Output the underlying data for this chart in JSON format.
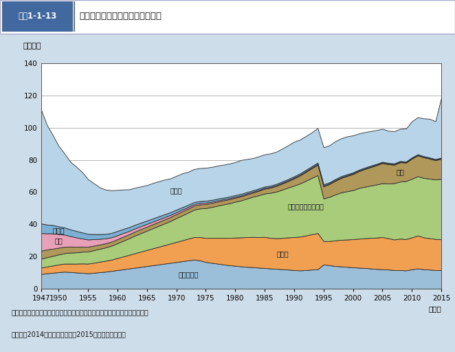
{
  "title_num": "図表1-1-13",
  "title_text": "主な死因別に見た死亡者数の推移",
  "ylabel": "（万人）",
  "xlabel": "（年）",
  "ylim": [
    0,
    140
  ],
  "years": [
    1947,
    1948,
    1949,
    1950,
    1951,
    1952,
    1953,
    1954,
    1955,
    1956,
    1957,
    1958,
    1959,
    1960,
    1961,
    1962,
    1963,
    1964,
    1965,
    1966,
    1967,
    1968,
    1969,
    1970,
    1971,
    1972,
    1973,
    1974,
    1975,
    1976,
    1977,
    1978,
    1979,
    1980,
    1981,
    1982,
    1983,
    1984,
    1985,
    1986,
    1987,
    1988,
    1989,
    1990,
    1991,
    1992,
    1993,
    1994,
    1995,
    1996,
    1997,
    1998,
    1999,
    2000,
    2001,
    2002,
    2003,
    2004,
    2005,
    2006,
    2007,
    2008,
    2009,
    2010,
    2011,
    2012,
    2013,
    2014,
    2015
  ],
  "series_order": [
    "脳血管疾患",
    "心疾患",
    "悪性新生物",
    "肺炎",
    "結核",
    "胃腸炎",
    "その他"
  ],
  "series": {
    "脳血管疾患": {
      "color": "#9cbfd9",
      "values": [
        9.0,
        9.5,
        9.8,
        10.2,
        10.5,
        10.3,
        10.0,
        9.8,
        9.5,
        9.8,
        10.2,
        10.5,
        11.0,
        11.5,
        12.0,
        12.5,
        13.0,
        13.5,
        14.0,
        14.5,
        15.0,
        15.5,
        16.0,
        16.5,
        17.0,
        17.5,
        18.0,
        17.5,
        16.5,
        16.0,
        15.5,
        15.0,
        14.5,
        14.2,
        13.8,
        13.5,
        13.3,
        13.0,
        12.8,
        12.5,
        12.3,
        12.0,
        11.8,
        11.5,
        11.3,
        11.5,
        11.8,
        12.0,
        15.0,
        14.5,
        14.0,
        13.8,
        13.5,
        13.2,
        13.0,
        12.8,
        12.5,
        12.2,
        12.0,
        11.8,
        11.5,
        11.5,
        11.3,
        12.0,
        12.5,
        12.0,
        11.8,
        11.5,
        11.4
      ]
    },
    "心疾患": {
      "color": "#f0a050",
      "values": [
        4.0,
        4.2,
        4.5,
        4.8,
        5.0,
        5.2,
        5.5,
        5.8,
        6.0,
        6.3,
        6.5,
        6.8,
        7.0,
        7.5,
        8.0,
        8.5,
        9.0,
        9.5,
        10.0,
        10.5,
        11.0,
        11.5,
        12.0,
        12.5,
        13.0,
        13.5,
        14.0,
        14.5,
        15.0,
        15.5,
        16.0,
        16.5,
        17.0,
        17.5,
        18.0,
        18.5,
        18.8,
        19.0,
        19.3,
        19.0,
        19.0,
        19.5,
        20.0,
        20.5,
        21.0,
        21.5,
        22.0,
        22.5,
        14.5,
        15.0,
        16.0,
        16.5,
        17.0,
        17.5,
        18.0,
        18.5,
        19.0,
        19.5,
        20.0,
        19.5,
        19.0,
        19.5,
        19.5,
        19.8,
        20.5,
        19.8,
        19.5,
        19.3,
        19.3
      ]
    },
    "悪性新生物": {
      "color": "#a8cc7a",
      "values": [
        5.5,
        5.8,
        6.0,
        6.2,
        6.5,
        6.8,
        7.0,
        7.3,
        7.5,
        7.8,
        8.0,
        8.3,
        8.7,
        9.2,
        9.8,
        10.3,
        11.0,
        11.5,
        12.0,
        12.5,
        13.0,
        13.5,
        14.0,
        14.8,
        15.5,
        16.2,
        17.0,
        17.8,
        18.5,
        19.2,
        20.0,
        20.8,
        21.5,
        22.3,
        23.0,
        24.0,
        25.0,
        26.0,
        27.0,
        28.0,
        29.0,
        30.0,
        31.0,
        32.0,
        33.0,
        34.0,
        35.0,
        36.0,
        26.5,
        27.5,
        28.5,
        29.5,
        30.0,
        30.5,
        31.5,
        32.0,
        32.5,
        33.0,
        33.5,
        34.0,
        35.0,
        35.5,
        36.0,
        36.5,
        36.8,
        37.0,
        37.0,
        37.0,
        37.5
      ]
    },
    "肺炎": {
      "color": "#b0975a",
      "values": [
        5.0,
        4.8,
        4.5,
        4.2,
        4.0,
        3.8,
        3.5,
        3.2,
        3.0,
        2.8,
        2.7,
        2.6,
        2.5,
        2.5,
        2.5,
        2.5,
        2.5,
        2.5,
        2.5,
        2.5,
        2.5,
        2.5,
        2.5,
        2.5,
        2.5,
        2.5,
        2.5,
        2.5,
        2.5,
        2.5,
        2.5,
        2.5,
        2.5,
        2.5,
        2.5,
        2.5,
        2.5,
        2.8,
        3.0,
        3.2,
        3.5,
        3.8,
        4.0,
        4.5,
        5.0,
        5.5,
        6.0,
        6.5,
        7.5,
        8.0,
        8.5,
        9.0,
        9.5,
        10.0,
        10.5,
        11.0,
        11.5,
        12.0,
        12.5,
        12.0,
        11.5,
        12.0,
        11.5,
        12.5,
        13.0,
        12.8,
        12.5,
        12.0,
        12.5
      ]
    },
    "結核": {
      "color": "#e8a0b8",
      "values": [
        11.0,
        10.0,
        9.5,
        8.5,
        7.5,
        6.5,
        5.8,
        5.0,
        4.5,
        4.0,
        3.5,
        3.0,
        2.7,
        2.5,
        2.3,
        2.0,
        1.9,
        1.8,
        1.7,
        1.6,
        1.5,
        1.4,
        1.3,
        1.2,
        1.1,
        1.0,
        1.0,
        0.9,
        0.9,
        0.8,
        0.8,
        0.7,
        0.7,
        0.6,
        0.6,
        0.6,
        0.6,
        0.5,
        0.5,
        0.5,
        0.5,
        0.5,
        0.5,
        0.5,
        0.5,
        0.5,
        0.5,
        0.5,
        0.5,
        0.4,
        0.4,
        0.4,
        0.4,
        0.4,
        0.3,
        0.3,
        0.3,
        0.3,
        0.3,
        0.3,
        0.3,
        0.3,
        0.2,
        0.2,
        0.2,
        0.2,
        0.2,
        0.2,
        0.2
      ]
    },
    "胃腸炎": {
      "color": "#7bafd4",
      "values": [
        6.0,
        5.5,
        5.2,
        4.8,
        4.5,
        4.2,
        4.0,
        3.8,
        3.5,
        3.2,
        3.0,
        2.8,
        2.7,
        2.6,
        2.5,
        2.4,
        2.3,
        2.2,
        2.1,
        2.0,
        1.9,
        1.8,
        1.7,
        1.6,
        1.5,
        1.4,
        1.3,
        1.2,
        1.2,
        1.1,
        1.1,
        1.0,
        1.0,
        1.0,
        1.0,
        0.9,
        0.9,
        0.9,
        0.8,
        0.8,
        0.8,
        0.8,
        0.8,
        0.8,
        0.8,
        0.8,
        0.8,
        0.8,
        0.8,
        0.7,
        0.7,
        0.7,
        0.7,
        0.6,
        0.6,
        0.6,
        0.6,
        0.5,
        0.5,
        0.5,
        0.5,
        0.5,
        0.5,
        0.5,
        0.5,
        0.5,
        0.5,
        0.5,
        0.5
      ]
    },
    "その他": {
      "color": "#b8d4e8",
      "values": [
        71.0,
        62.0,
        56.0,
        50.0,
        46.0,
        42.0,
        40.0,
        37.5,
        34.0,
        31.5,
        29.0,
        27.5,
        26.5,
        25.5,
        24.5,
        23.5,
        23.0,
        22.5,
        22.0,
        22.0,
        21.8,
        21.5,
        21.0,
        21.0,
        21.0,
        20.5,
        20.5,
        20.5,
        20.5,
        20.5,
        20.5,
        20.5,
        20.5,
        20.5,
        21.0,
        20.5,
        20.0,
        20.0,
        20.0,
        20.0,
        20.0,
        20.5,
        21.0,
        21.5,
        21.0,
        21.0,
        21.0,
        21.5,
        23.0,
        23.0,
        23.5,
        23.5,
        23.5,
        23.0,
        22.5,
        22.0,
        21.5,
        21.0,
        20.5,
        20.0,
        20.0,
        20.0,
        20.5,
        22.5,
        23.0,
        23.5,
        24.0,
        23.5,
        37.5
      ]
    }
  },
  "anno_params": [
    [
      0,
      "脳血管疾患",
      26,
      1972
    ],
    [
      1,
      "心疾患",
      41,
      1988
    ],
    [
      2,
      "悪性新生物（がん）",
      46,
      1992
    ],
    [
      3,
      "肺炎",
      62,
      2008
    ],
    [
      4,
      "結核",
      3,
      1950
    ],
    [
      5,
      "胃腸炎",
      3,
      1950
    ],
    [
      6,
      "その他",
      24,
      1970
    ]
  ],
  "source_text": "資料：厚生労働省政策統括官付人口動態・保健社会統計室「人口動態統計」",
  "note_text": "（注）　2014年までは確定数、2015年は概数である。",
  "bg_color": "#cddde9",
  "plot_bg_color": "#ffffff",
  "header_num_bg": "#4169a0",
  "header_text_bg": "#ffffff",
  "xticks": [
    1947,
    1950,
    1955,
    1960,
    1965,
    1970,
    1975,
    1980,
    1985,
    1990,
    1995,
    2000,
    2005,
    2010,
    2015
  ],
  "yticks": [
    0,
    20,
    40,
    60,
    80,
    100,
    120,
    140
  ]
}
